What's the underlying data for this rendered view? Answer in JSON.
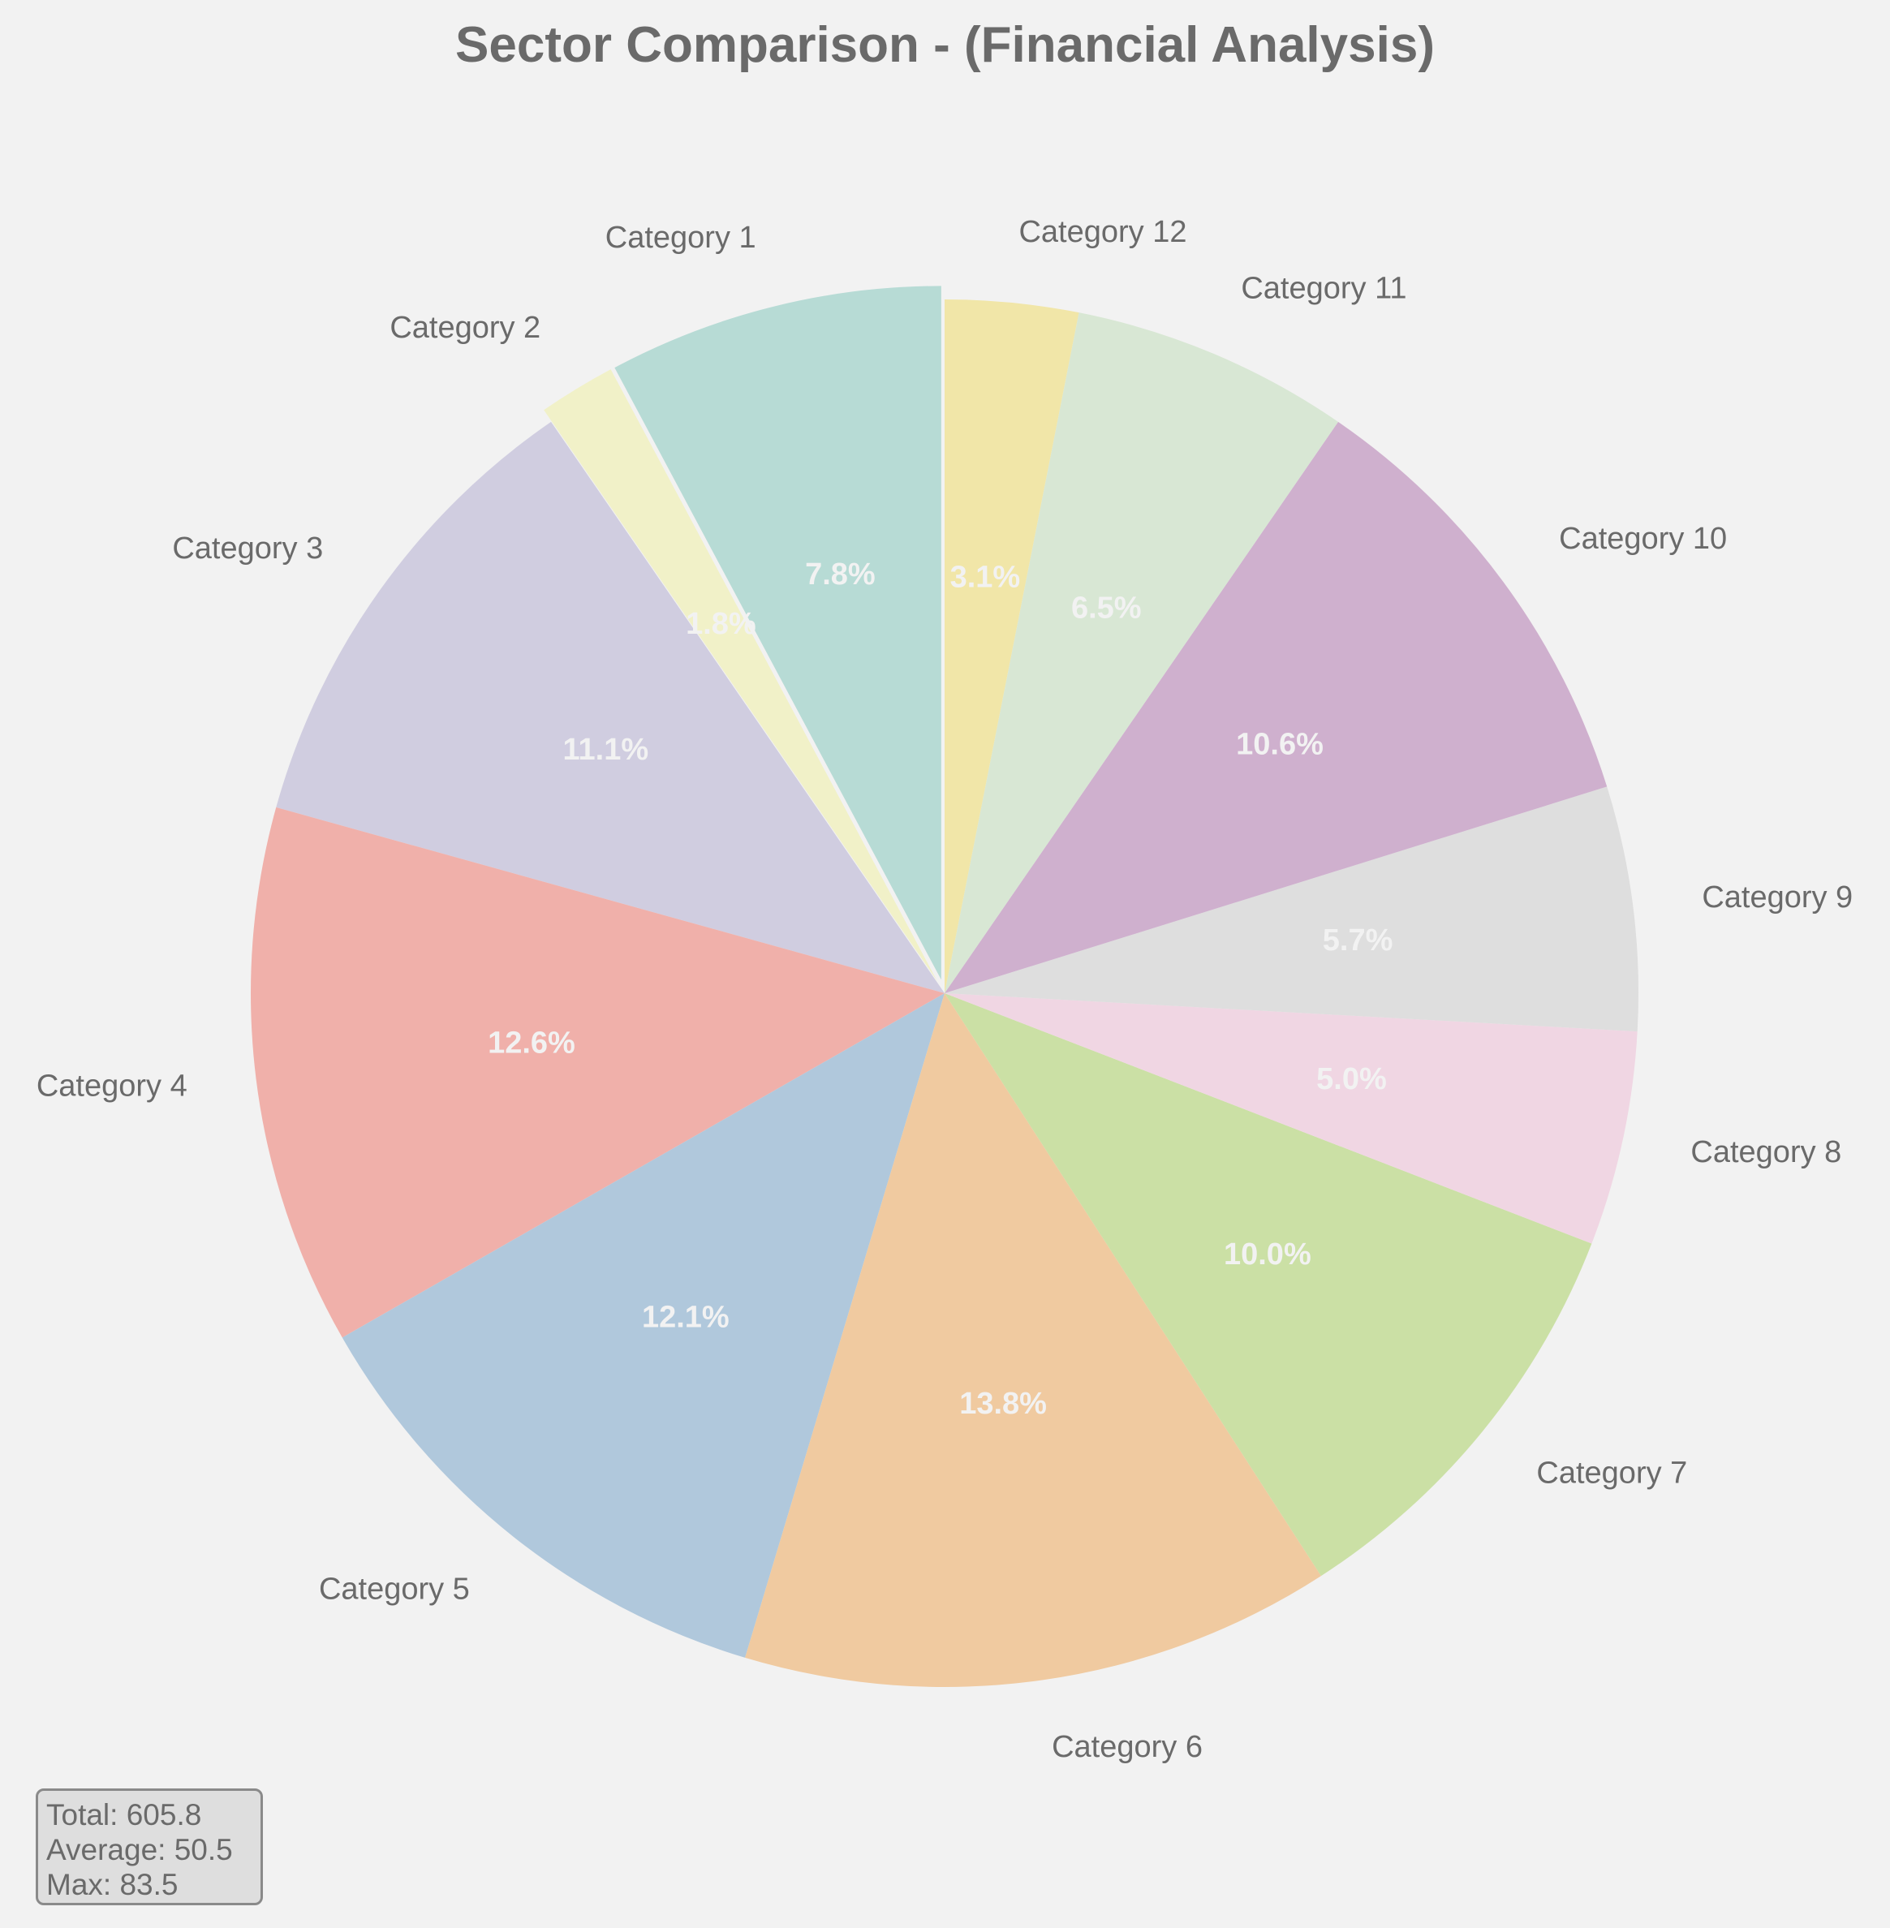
{
  "chart_data": {
    "type": "pie",
    "title": "Sector Comparison - (Financial Analysis)",
    "start_angle_deg": 90,
    "direction": "counterclockwise",
    "slices": [
      {
        "label": "Category 1",
        "value": 47.3,
        "pct_label": "7.8%",
        "color": "#b7dbd5",
        "exploded": true
      },
      {
        "label": "Category 2",
        "value": 10.9,
        "pct_label": "1.8%",
        "color": "#f1f1c8",
        "exploded": true
      },
      {
        "label": "Category 3",
        "value": 67.2,
        "pct_label": "11.1%",
        "color": "#d0cde0",
        "exploded": false
      },
      {
        "label": "Category 4",
        "value": 76.3,
        "pct_label": "12.6%",
        "color": "#f0b0aa",
        "exploded": false
      },
      {
        "label": "Category 5",
        "value": 73.3,
        "pct_label": "12.1%",
        "color": "#b0c8dc",
        "exploded": false
      },
      {
        "label": "Category 6",
        "value": 83.5,
        "pct_label": "13.8%",
        "color": "#f0caa0",
        "exploded": false
      },
      {
        "label": "Category 7",
        "value": 60.6,
        "pct_label": "10.0%",
        "color": "#cbe0a5",
        "exploded": false
      },
      {
        "label": "Category 8",
        "value": 30.3,
        "pct_label": "5.0%",
        "color": "#f0d6e3",
        "exploded": false
      },
      {
        "label": "Category 9",
        "value": 34.5,
        "pct_label": "5.7%",
        "color": "#dedede",
        "exploded": false
      },
      {
        "label": "Category 10",
        "value": 64.2,
        "pct_label": "10.6%",
        "color": "#cfb0ce",
        "exploded": false
      },
      {
        "label": "Category 11",
        "value": 39.4,
        "pct_label": "6.5%",
        "color": "#d8e7d4",
        "exploded": false
      },
      {
        "label": "Category 12",
        "value": 18.8,
        "pct_label": "3.1%",
        "color": "#f1e6a8",
        "exploded": false
      }
    ]
  },
  "stats": {
    "total": "Total: 605.8",
    "average": "Average: 50.5",
    "max": "Max: 83.5"
  }
}
